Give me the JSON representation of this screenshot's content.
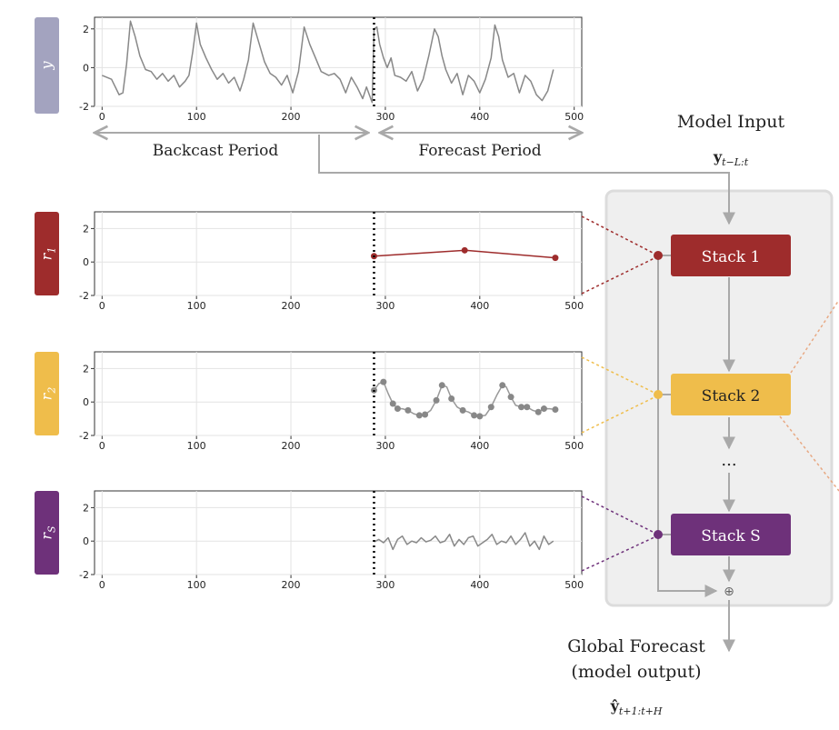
{
  "colors": {
    "y_label_bg": "#a3a3bf",
    "r1": "#9e2c2c",
    "r2": "#efbd4b",
    "rs": "#6e317a",
    "arrow": "#a9a9a9",
    "series": "#888888",
    "panel_bg": "#efefef",
    "panel_border": "#dcdcdc"
  },
  "periods": {
    "backcast": "Backcast Period",
    "forecast": "Forecast Period"
  },
  "model_input": {
    "title": "Model Input",
    "symbol_main": "y",
    "symbol_sub": "t−L:t"
  },
  "output": {
    "line1": "Global Forecast",
    "line2": "(model output)",
    "symbol_main": "ŷ",
    "symbol_sub": "t+1:t+H"
  },
  "stacks": [
    {
      "label": "Stack 1",
      "color": "#9e2c2c",
      "text_color": "#ffffff"
    },
    {
      "label": "Stack 2",
      "color": "#efbd4b",
      "text_color": "#222222"
    },
    {
      "label": "Stack S",
      "color": "#6e317a",
      "text_color": "#ffffff"
    }
  ],
  "ellipsis": "...",
  "sum_symbol": "⊕",
  "chart_data": [
    {
      "type": "line",
      "ylabel": "y",
      "xlim": [
        -8,
        508
      ],
      "ylim": [
        -2,
        2.6
      ],
      "xticks": [
        0,
        100,
        200,
        300,
        400,
        500
      ],
      "yticks": [
        -2,
        0,
        2
      ],
      "split_x": 288,
      "series": [
        {
          "x": [
            0,
            10,
            18,
            22,
            26,
            30,
            35,
            40,
            46,
            52,
            58,
            64,
            70,
            76,
            82,
            88,
            92,
            96,
            100,
            104,
            110,
            116,
            122,
            128,
            134,
            140,
            146,
            150,
            155,
            160,
            166,
            172,
            178,
            184,
            190,
            196,
            202,
            208,
            214,
            220,
            226,
            232,
            240,
            246,
            252,
            258,
            264,
            270,
            276,
            280,
            286,
            288,
            291,
            294,
            298,
            302,
            306,
            310,
            316,
            322,
            328,
            334,
            340,
            346,
            352,
            356,
            360,
            364,
            370,
            376,
            382,
            388,
            394,
            400,
            406,
            412,
            416,
            420,
            424,
            430,
            436,
            442,
            448,
            454,
            460,
            466,
            472,
            478
          ],
          "y": [
            -0.4,
            -0.6,
            -1.4,
            -1.3,
            0.2,
            2.4,
            1.6,
            0.6,
            -0.1,
            -0.2,
            -0.6,
            -0.3,
            -0.7,
            -0.4,
            -1.0,
            -0.7,
            -0.4,
            0.8,
            2.3,
            1.2,
            0.5,
            -0.1,
            -0.6,
            -0.3,
            -0.8,
            -0.5,
            -1.2,
            -0.6,
            0.4,
            2.3,
            1.3,
            0.3,
            -0.3,
            -0.5,
            -0.9,
            -0.4,
            -1.3,
            -0.2,
            2.1,
            1.2,
            0.5,
            -0.2,
            -0.4,
            -0.3,
            -0.6,
            -1.3,
            -0.5,
            -1.0,
            -1.6,
            -1.0,
            -1.8,
            2.0,
            2.1,
            1.2,
            0.5,
            0.0,
            0.5,
            -0.4,
            -0.5,
            -0.7,
            -0.2,
            -1.2,
            -0.6,
            0.6,
            2.0,
            1.6,
            0.6,
            -0.1,
            -0.8,
            -0.3,
            -1.4,
            -0.4,
            -0.7,
            -1.3,
            -0.6,
            0.5,
            2.2,
            1.6,
            0.4,
            -0.5,
            -0.3,
            -1.3,
            -0.4,
            -0.7,
            -1.4,
            -1.7,
            -1.2,
            -0.1
          ],
          "markers": false
        }
      ]
    },
    {
      "type": "line",
      "ylabel": "r1",
      "xlim": [
        -8,
        508
      ],
      "ylim": [
        -2,
        3
      ],
      "xticks": [
        0,
        100,
        200,
        300,
        400,
        500
      ],
      "yticks": [
        -2,
        0,
        2
      ],
      "split_x": 288,
      "series": [
        {
          "x": [
            288,
            384,
            480
          ],
          "y": [
            0.35,
            0.7,
            0.25
          ],
          "markers": true,
          "marker_color": "#9e2c2c",
          "line_color": "#9e2c2c"
        }
      ]
    },
    {
      "type": "line",
      "ylabel": "r2",
      "xlim": [
        -8,
        508
      ],
      "ylim": [
        -2,
        3
      ],
      "xticks": [
        0,
        100,
        200,
        300,
        400,
        500
      ],
      "yticks": [
        -2,
        0,
        2
      ],
      "split_x": 288,
      "series": [
        {
          "x": [
            288,
            293,
            298,
            303,
            308,
            313,
            318,
            324,
            330,
            336,
            342,
            348,
            354,
            360,
            365,
            370,
            376,
            382,
            388,
            394,
            400,
            406,
            412,
            418,
            424,
            428,
            433,
            438,
            444,
            450,
            456,
            462,
            468,
            474,
            480
          ],
          "y": [
            0.7,
            1.1,
            1.2,
            0.5,
            -0.1,
            -0.4,
            -0.4,
            -0.5,
            -0.7,
            -0.8,
            -0.75,
            -0.5,
            0.1,
            1.0,
            0.9,
            0.2,
            -0.3,
            -0.5,
            -0.6,
            -0.8,
            -0.85,
            -0.8,
            -0.3,
            0.4,
            1.0,
            0.9,
            0.3,
            -0.2,
            -0.3,
            -0.3,
            -0.5,
            -0.6,
            -0.4,
            -0.4,
            -0.45
          ],
          "markers": true,
          "marker_color": "#888888",
          "line_color": "#999999",
          "marker_at": [
            0,
            2,
            4,
            5,
            7,
            9,
            10,
            12,
            13,
            15,
            17,
            19,
            20,
            22,
            24,
            26,
            28,
            29,
            31,
            32,
            34
          ]
        }
      ]
    },
    {
      "type": "line",
      "ylabel": "rS",
      "xlim": [
        -8,
        508
      ],
      "ylim": [
        -2,
        3
      ],
      "xticks": [
        0,
        100,
        200,
        300,
        400,
        500
      ],
      "yticks": [
        -2,
        0,
        2
      ],
      "split_x": 288,
      "series": [
        {
          "x": [
            288,
            293,
            298,
            303,
            308,
            313,
            318,
            323,
            328,
            333,
            338,
            343,
            348,
            353,
            358,
            363,
            368,
            373,
            378,
            383,
            388,
            393,
            398,
            403,
            408,
            413,
            418,
            423,
            428,
            433,
            438,
            443,
            448,
            453,
            458,
            463,
            468,
            473,
            478
          ],
          "y": [
            -0.05,
            0.1,
            -0.1,
            0.2,
            -0.5,
            0.1,
            0.3,
            -0.2,
            0.0,
            -0.1,
            0.2,
            -0.05,
            0.05,
            0.3,
            -0.1,
            0.0,
            0.4,
            -0.3,
            0.1,
            -0.2,
            0.2,
            0.3,
            -0.3,
            -0.1,
            0.1,
            0.4,
            -0.2,
            0.0,
            -0.1,
            0.3,
            -0.2,
            0.1,
            0.5,
            -0.3,
            0.0,
            -0.5,
            0.3,
            -0.2,
            0.0
          ],
          "markers": false
        }
      ]
    }
  ]
}
